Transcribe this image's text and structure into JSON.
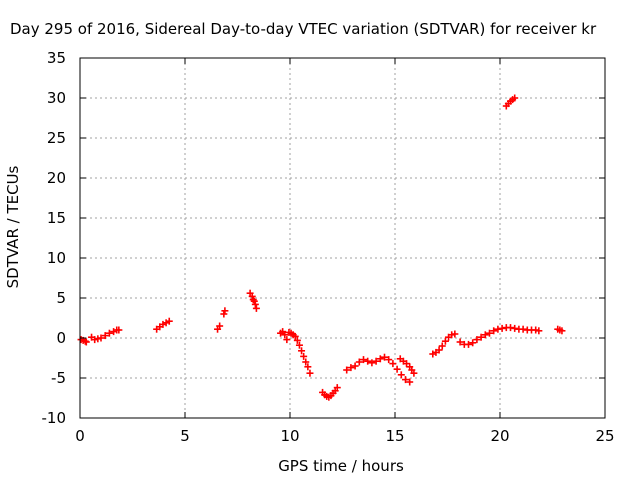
{
  "chart_data": {
    "type": "scatter",
    "title": "Day 295 of 2016, Sidereal Day-to-day VTEC variation (SDTVAR) for receiver kr",
    "xlabel": "GPS time / hours",
    "ylabel": "SDTVAR / TECUs",
    "xlim": [
      0,
      25
    ],
    "ylim": [
      -10,
      35
    ],
    "xticks": [
      0,
      5,
      10,
      15,
      20,
      25
    ],
    "xtick_labels": [
      "0",
      "5",
      "10",
      "15",
      "20",
      "25"
    ],
    "yticks": [
      -10,
      -5,
      0,
      5,
      10,
      15,
      20,
      25,
      30,
      35
    ],
    "ytick_labels": [
      "-10",
      "-5",
      "0",
      "5",
      "10",
      "15",
      "20",
      "25",
      "30",
      "35"
    ],
    "grid": true,
    "marker": "+",
    "series": [
      {
        "color": "#ff0000",
        "x": [
          0.05,
          0.15,
          0.25,
          0.3,
          0.55,
          0.7,
          0.85,
          1.0,
          1.2,
          1.4,
          1.6,
          1.75,
          1.85,
          3.65,
          3.8,
          3.95,
          4.1,
          4.25,
          6.55,
          6.65,
          6.85,
          6.9,
          8.1,
          8.2,
          8.25,
          8.3,
          8.35,
          8.4,
          9.55,
          9.65,
          9.75,
          9.85,
          9.95,
          10.05,
          10.15,
          10.25,
          10.35,
          10.45,
          10.55,
          10.65,
          10.75,
          10.85,
          10.95,
          11.55,
          11.65,
          11.75,
          11.85,
          11.95,
          12.05,
          12.15,
          12.25,
          12.7,
          12.9,
          13.1,
          13.3,
          13.5,
          13.7,
          13.9,
          14.1,
          14.3,
          14.5,
          14.7,
          14.9,
          15.1,
          15.3,
          15.5,
          15.7,
          15.25,
          15.4,
          15.55,
          15.7,
          15.8,
          15.9,
          16.8,
          16.95,
          17.1,
          17.25,
          17.4,
          17.55,
          17.7,
          17.85,
          18.1,
          18.3,
          18.5,
          18.7,
          18.9,
          19.1,
          19.3,
          19.5,
          19.7,
          19.9,
          20.1,
          20.3,
          20.5,
          20.7,
          20.9,
          21.1,
          21.3,
          21.5,
          21.7,
          21.85,
          20.3,
          20.4,
          20.5,
          20.6,
          20.7,
          22.75,
          22.85,
          22.95
        ],
        "y": [
          -0.2,
          -0.3,
          -0.4,
          -0.5,
          0.1,
          -0.2,
          -0.1,
          0.0,
          0.3,
          0.6,
          0.8,
          1.0,
          1.0,
          1.1,
          1.4,
          1.7,
          1.9,
          2.1,
          1.1,
          1.5,
          3.0,
          3.4,
          5.6,
          5.2,
          4.8,
          4.6,
          4.2,
          3.7,
          0.6,
          0.8,
          0.4,
          -0.2,
          0.7,
          0.6,
          0.4,
          0.2,
          -0.3,
          -0.9,
          -1.6,
          -2.3,
          -3.0,
          -3.6,
          -4.4,
          -6.8,
          -7.1,
          -7.3,
          -7.4,
          -7.2,
          -6.9,
          -6.6,
          -6.2,
          -4.0,
          -3.7,
          -3.5,
          -3.0,
          -2.7,
          -2.9,
          -3.1,
          -2.9,
          -2.6,
          -2.4,
          -2.7,
          -3.2,
          -3.9,
          -4.6,
          -5.2,
          -5.5,
          -2.6,
          -2.9,
          -3.2,
          -3.6,
          -4.0,
          -4.4,
          -2.0,
          -1.8,
          -1.5,
          -1.0,
          -0.4,
          0.1,
          0.4,
          0.5,
          -0.5,
          -0.8,
          -0.8,
          -0.6,
          -0.2,
          0.1,
          0.4,
          0.6,
          0.9,
          1.1,
          1.2,
          1.3,
          1.3,
          1.2,
          1.1,
          1.1,
          1.0,
          1.0,
          1.0,
          0.9,
          29.0,
          29.3,
          29.6,
          29.8,
          30.0,
          1.1,
          1.0,
          0.9
        ]
      }
    ]
  }
}
